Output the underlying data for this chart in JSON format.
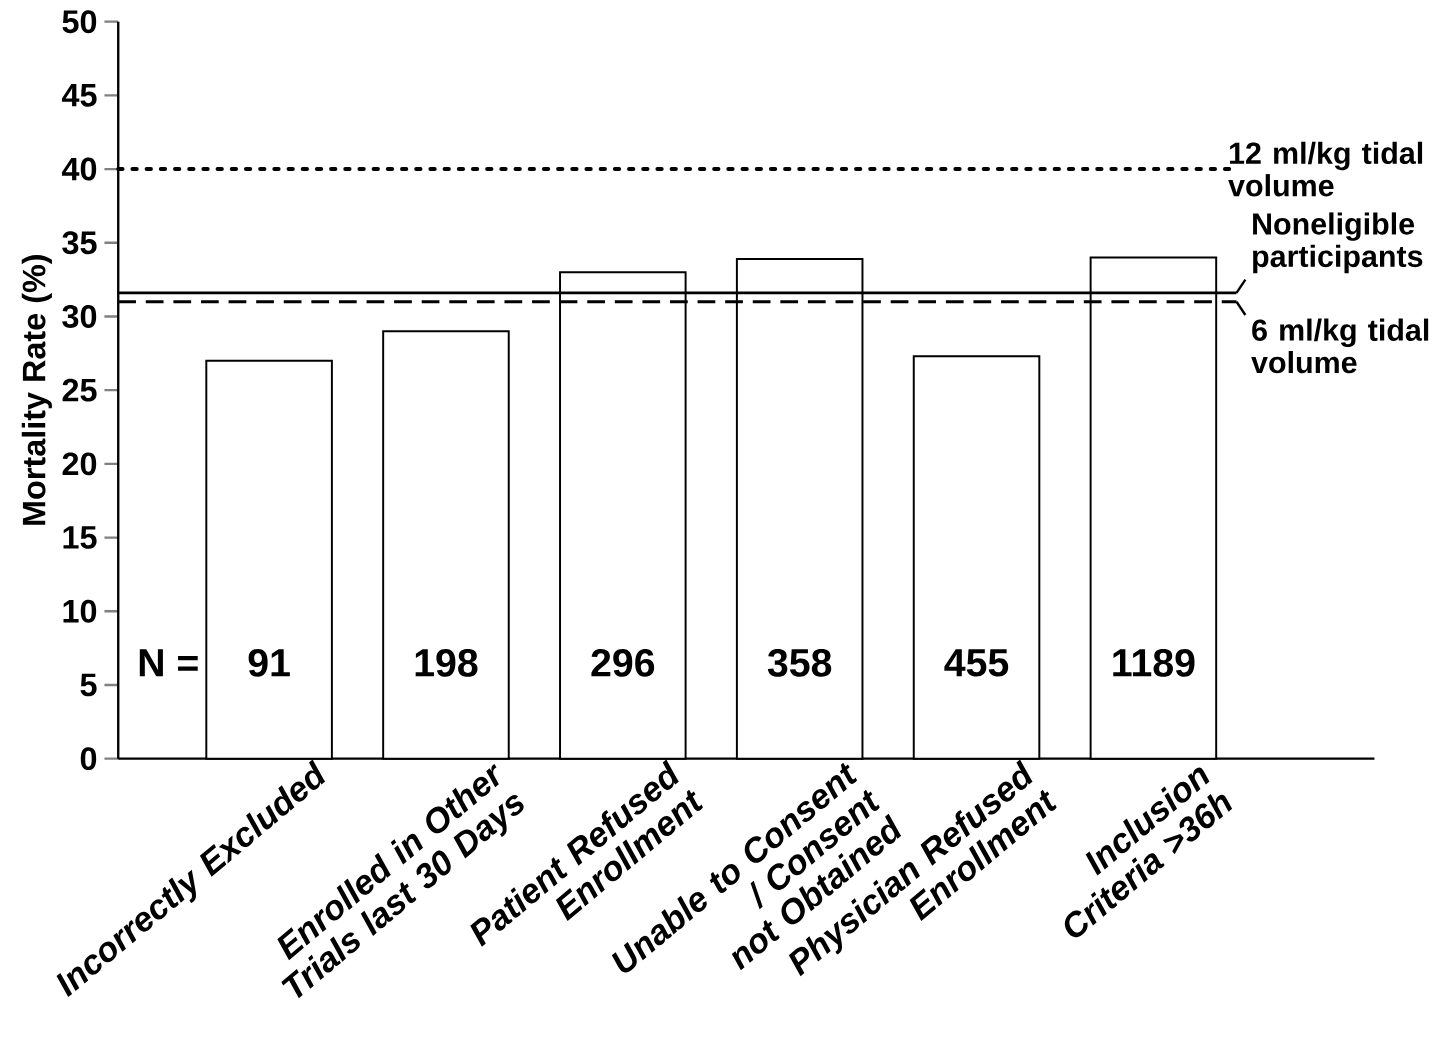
{
  "chart_data": {
    "type": "bar",
    "ylabel": "Mortality Rate (%)",
    "categories": [
      "Incorrectly Excluded",
      "Enrolled in Other Trials last 30 Days",
      "Patient Refused Enrollment",
      "Unable to Consent / Consent not Obtained",
      "Physician Refused Enrollment",
      "Inclusion Criteria >36h"
    ],
    "values": [
      27,
      29,
      33,
      33.9,
      27.3,
      34
    ],
    "color": "#ffffff",
    "ylim": [
      0,
      50
    ],
    "yticks": [
      0,
      5,
      10,
      15,
      20,
      25,
      30,
      35,
      40,
      45,
      50
    ],
    "ref_lines": [
      {
        "axis": "y",
        "value": 40,
        "label": "12 ml/kg tidal volume",
        "line_style": "dotted",
        "color": "#000000"
      },
      {
        "axis": "y",
        "value": 31.6,
        "label": "Noneligible participants",
        "line_style": "solid",
        "color": "#000000"
      },
      {
        "axis": "y",
        "value": 31,
        "label": "6 ml/kg tidal volume",
        "line_style": "dashed",
        "color": "#000000"
      }
    ],
    "annotations": [
      "N =",
      "91",
      "198",
      "296",
      "358",
      "455",
      "1189"
    ]
  }
}
